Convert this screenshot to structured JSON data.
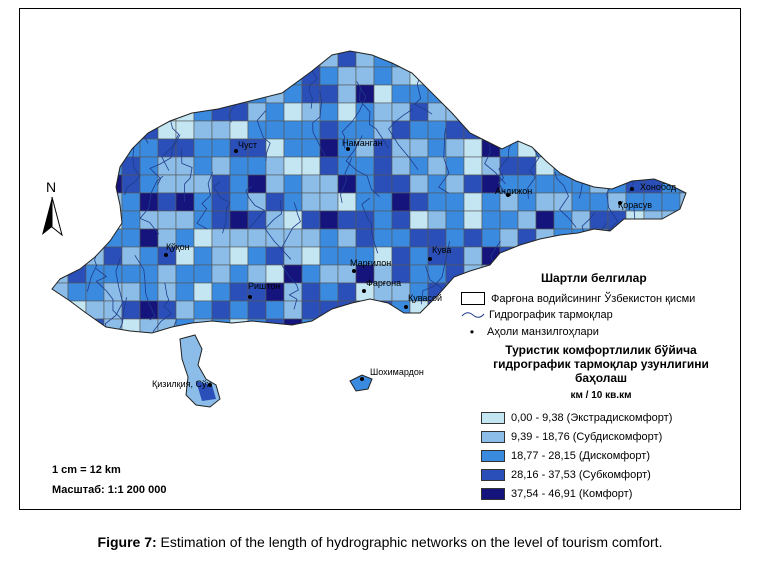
{
  "map": {
    "cities": [
      {
        "name": "Чуст"
      },
      {
        "name": "Наманган"
      },
      {
        "name": "Андижон"
      },
      {
        "name": "Хонобод"
      },
      {
        "name": "Қорасув"
      },
      {
        "name": "Қўқон"
      },
      {
        "name": "Кува"
      },
      {
        "name": "Марғилон"
      },
      {
        "name": "Фарғона"
      },
      {
        "name": "Риштон"
      },
      {
        "name": "Қувасой"
      },
      {
        "name": "Шохимардон"
      },
      {
        "name": "Қизилқия, Сўх"
      }
    ],
    "north_label": "N"
  },
  "legend": {
    "title": "Шартли белгилар",
    "boundary_label": "Фарғона водийсининг Ўзбекистон қисми",
    "rivers_label": "Гидрографик тармоқлар",
    "settlements_label": "Аҳоли манзилгоҳлари",
    "class_title": "Туристик комфортлилик бўйича гидрографик тармоқлар узунлигини баҳолаш",
    "unit": "км / 10 кв.км",
    "classes": [
      {
        "label": "0,00 - 9,38 (Экстрадискомфорт)",
        "color": "#c3e6f2"
      },
      {
        "label": "9,39 - 18,76 (Субдискомфорт)",
        "color": "#8bbde8"
      },
      {
        "label": "18,77 - 28,15 (Дискомфорт)",
        "color": "#3a8ae0"
      },
      {
        "label": "28,16 - 37,53 (Субкомфорт)",
        "color": "#2a4fb8"
      },
      {
        "label": "37,54 - 46,91 (Комфорт)",
        "color": "#14147c"
      }
    ]
  },
  "scale": {
    "ratio_line": "1 cm = 12 km",
    "scale_line": "Масштаб: 1:1 200 000"
  },
  "caption": {
    "label": "Figure 7:",
    "text": " Estimation of the length of hydrographic networks on the level of tourism comfort."
  }
}
